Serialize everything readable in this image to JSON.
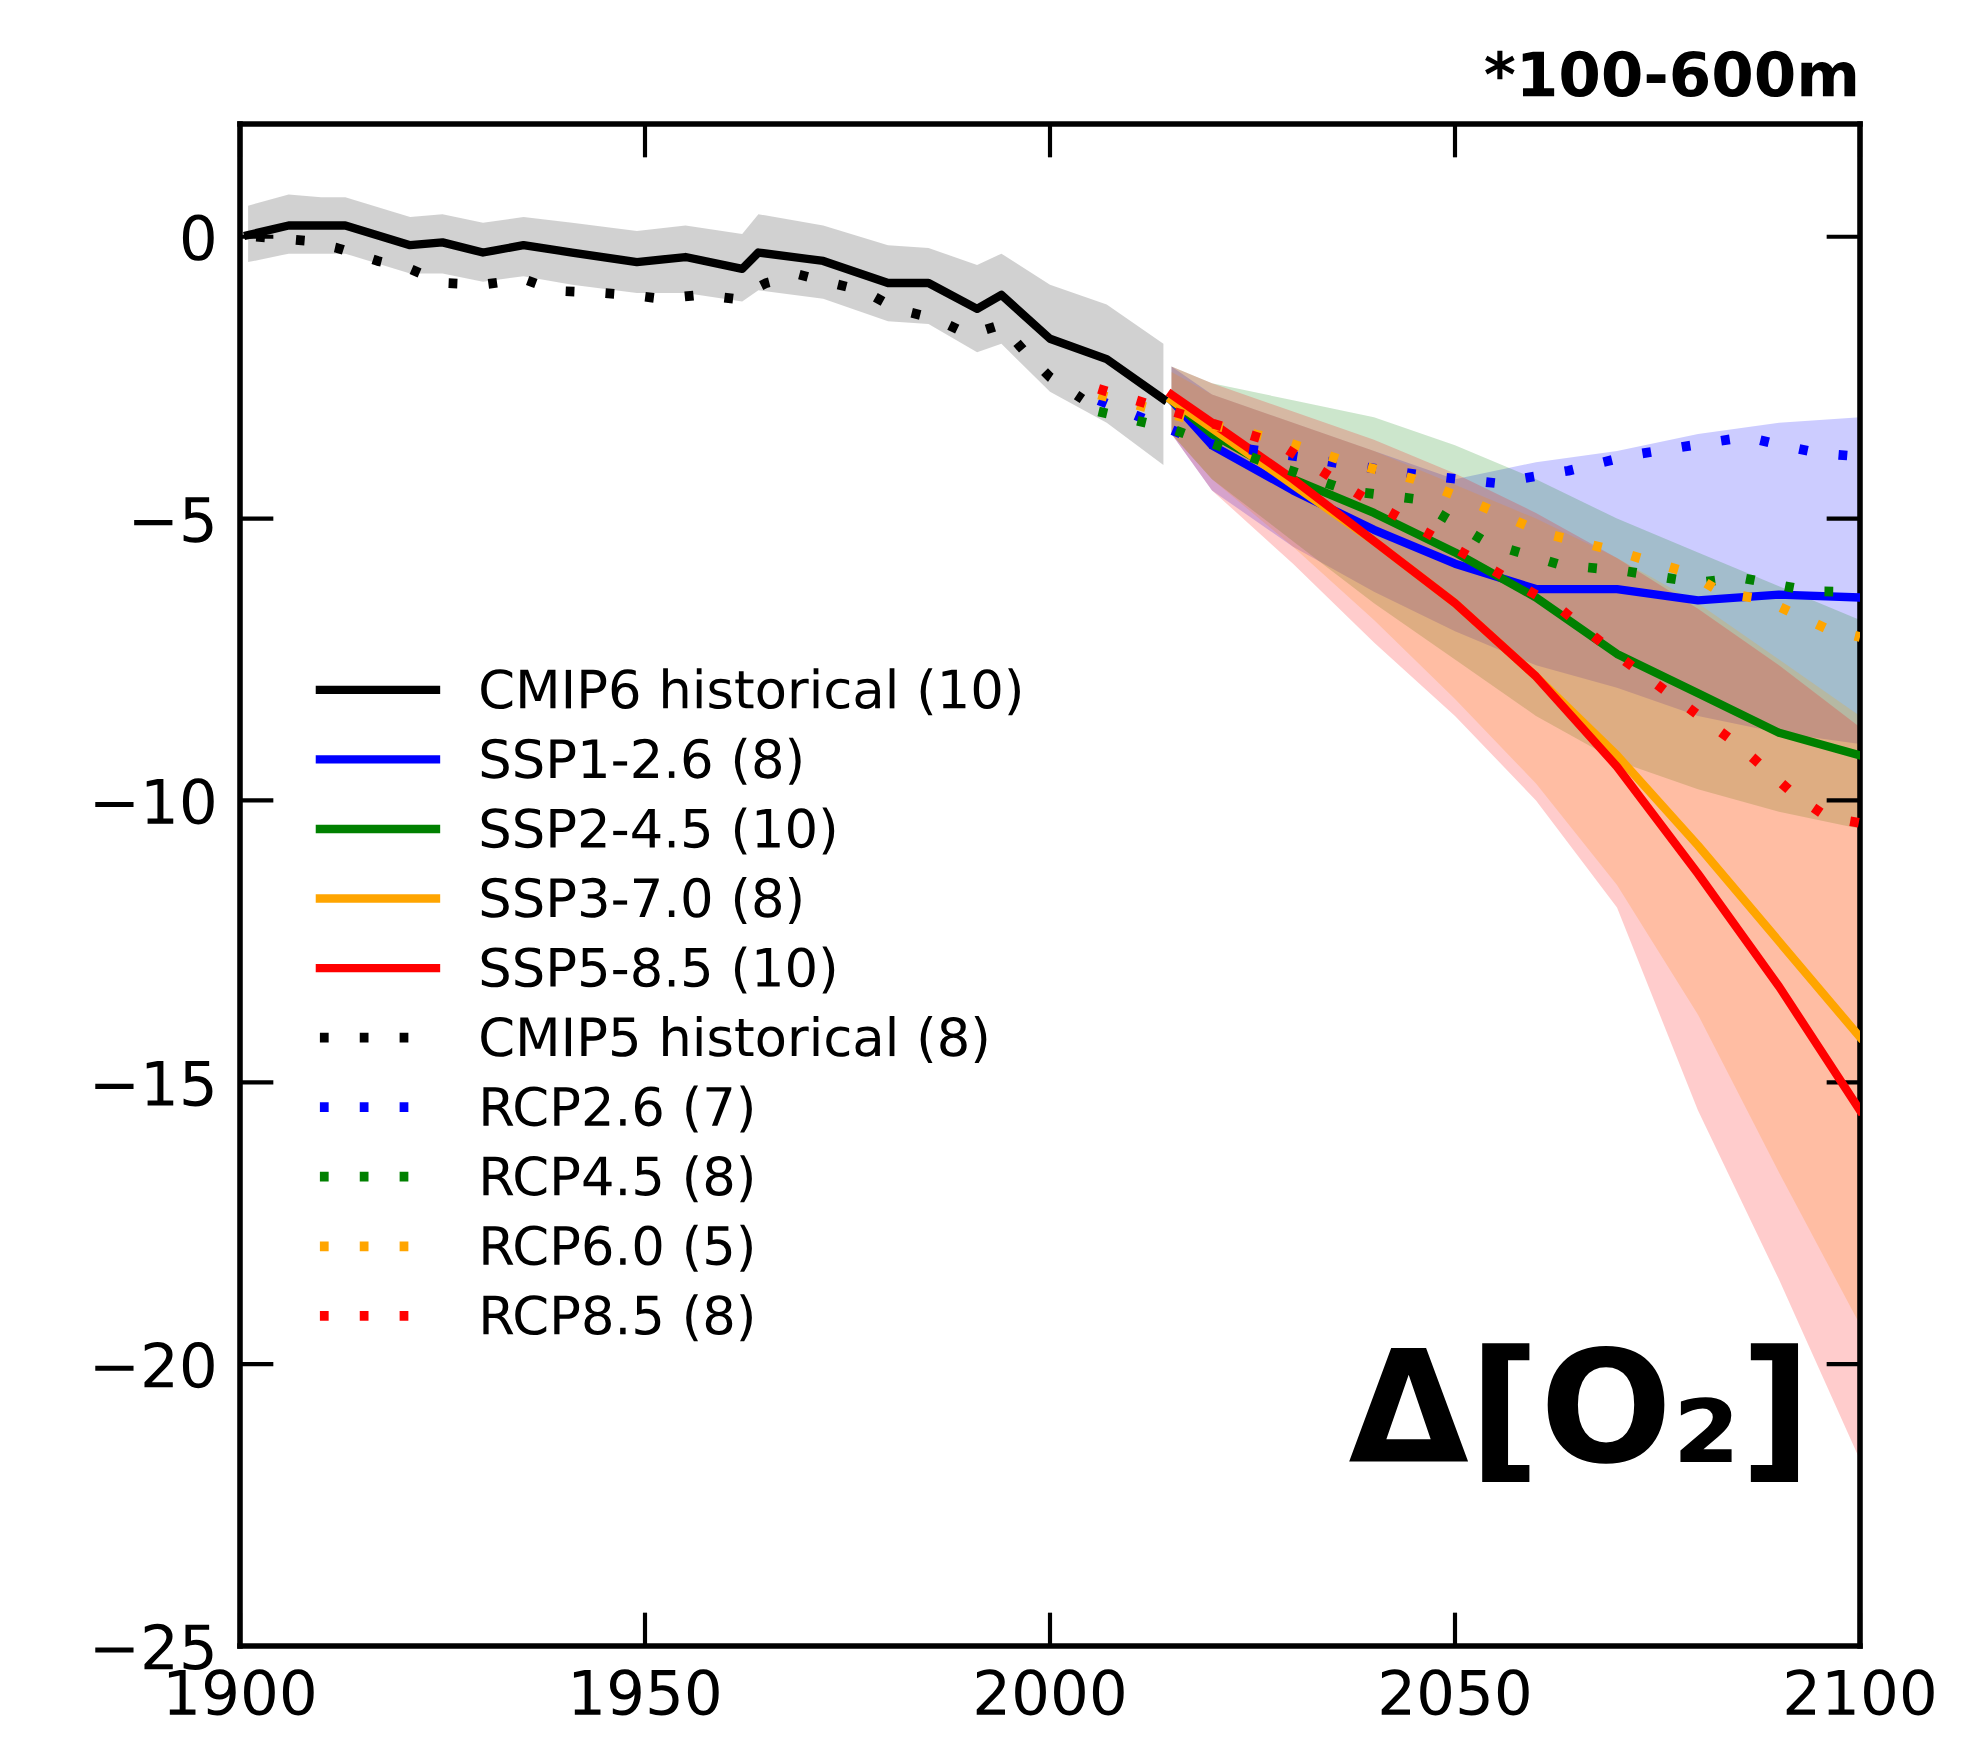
{
  "chart_data": {
    "type": "line",
    "title": "*100-600m",
    "annotations": [
      "Δ[O₂]"
    ],
    "xlim": [
      1900,
      2100
    ],
    "ylim": [
      -25,
      2
    ],
    "xticks": [
      1900,
      1950,
      2000,
      2050,
      2100
    ],
    "yticks": [
      {
        "value": 0,
        "label": "0"
      },
      {
        "value": -5,
        "label": "−5"
      },
      {
        "value": -10,
        "label": "−10"
      },
      {
        "value": -15,
        "label": "−15"
      },
      {
        "value": -20,
        "label": "−20"
      },
      {
        "value": -25,
        "label": "−25"
      }
    ],
    "grid": false,
    "legend": "left",
    "marker": "none",
    "series": [
      {
        "name": "CMIP6 historical (10)",
        "color": "#000000",
        "line_style": "solid",
        "x": [
          1901,
          1906,
          1910,
          1913,
          1921,
          1925,
          1930,
          1935,
          1941,
          1949,
          1955,
          1962,
          1964,
          1972,
          1980,
          1985,
          1991,
          1994,
          2000,
          2007,
          2014
        ],
        "values": [
          0.03,
          0.2,
          0.2,
          0.2,
          -0.15,
          -0.1,
          -0.28,
          -0.15,
          -0.28,
          -0.45,
          -0.36,
          -0.57,
          -0.28,
          -0.43,
          -0.82,
          -0.82,
          -1.28,
          -1.03,
          -1.81,
          -2.17,
          -2.88
        ],
        "upper": [
          0.55,
          0.75,
          0.7,
          0.7,
          0.35,
          0.4,
          0.25,
          0.35,
          0.25,
          0.1,
          0.2,
          0.05,
          0.4,
          0.2,
          -0.15,
          -0.2,
          -0.5,
          -0.3,
          -0.85,
          -1.2,
          -1.9
        ],
        "lower": [
          -0.45,
          -0.3,
          -0.3,
          -0.3,
          -0.65,
          -0.65,
          -0.8,
          -0.7,
          -0.85,
          -1.0,
          -1.0,
          -1.15,
          -0.95,
          -1.1,
          -1.5,
          -1.55,
          -2.05,
          -1.9,
          -2.75,
          -3.3,
          -4.05
        ]
      },
      {
        "name": "SSP1-2.6 (8)",
        "color": "#0000ff",
        "line_style": "solid",
        "x": [
          2015,
          2020,
          2030,
          2040,
          2050,
          2060,
          2070,
          2080,
          2090,
          2100
        ],
        "values": [
          -2.9,
          -3.7,
          -4.5,
          -5.2,
          -5.8,
          -6.25,
          -6.25,
          -6.45,
          -6.35,
          -6.4
        ],
        "upper": [
          -2.3,
          -2.8,
          -3.3,
          -3.8,
          -4.3,
          -4.0,
          -3.8,
          -3.5,
          -3.3,
          -3.2
        ],
        "lower": [
          -3.5,
          -4.5,
          -5.5,
          -6.3,
          -7.0,
          -7.6,
          -8.0,
          -8.5,
          -8.8,
          -9.0
        ]
      },
      {
        "name": "SSP2-4.5 (10)",
        "color": "#008000",
        "line_style": "solid",
        "x": [
          2015,
          2020,
          2030,
          2040,
          2050,
          2060,
          2070,
          2080,
          2090,
          2100
        ],
        "values": [
          -2.9,
          -3.5,
          -4.3,
          -4.9,
          -5.6,
          -6.4,
          -7.4,
          -8.1,
          -8.8,
          -9.2
        ],
        "upper": [
          -2.3,
          -2.6,
          -2.9,
          -3.2,
          -3.7,
          -4.3,
          -5.0,
          -5.6,
          -6.2,
          -6.8
        ],
        "lower": [
          -3.5,
          -4.3,
          -5.4,
          -6.5,
          -7.5,
          -8.5,
          -9.3,
          -9.8,
          -10.2,
          -10.5
        ]
      },
      {
        "name": "SSP3-7.0 (8)",
        "color": "#ffa500",
        "line_style": "solid",
        "x": [
          2015,
          2020,
          2030,
          2040,
          2050,
          2060,
          2070,
          2080,
          2090,
          2100
        ],
        "values": [
          -2.9,
          -3.4,
          -4.4,
          -5.4,
          -6.5,
          -7.8,
          -9.2,
          -10.8,
          -12.5,
          -14.2
        ],
        "upper": [
          -2.4,
          -2.8,
          -3.3,
          -3.8,
          -4.4,
          -5.0,
          -5.7,
          -6.5,
          -7.5,
          -8.5
        ],
        "lower": [
          -3.5,
          -4.3,
          -5.5,
          -6.8,
          -8.2,
          -9.7,
          -11.5,
          -13.8,
          -16.6,
          -19.3
        ]
      },
      {
        "name": "SSP5-8.5 (10)",
        "color": "#ff0000",
        "line_style": "solid",
        "x": [
          2015,
          2020,
          2030,
          2040,
          2050,
          2060,
          2070,
          2080,
          2090,
          2100
        ],
        "values": [
          -2.8,
          -3.3,
          -4.3,
          -5.4,
          -6.5,
          -7.8,
          -9.4,
          -11.3,
          -13.3,
          -15.5
        ],
        "upper": [
          -2.3,
          -2.6,
          -3.1,
          -3.6,
          -4.2,
          -4.9,
          -5.7,
          -6.6,
          -7.6,
          -8.7
        ],
        "lower": [
          -3.5,
          -4.5,
          -5.8,
          -7.2,
          -8.5,
          -10.0,
          -11.9,
          -15.5,
          -18.5,
          -21.7
        ]
      },
      {
        "name": "CMIP5 historical (8)",
        "color": "#000000",
        "line_style": "dotted",
        "x": [
          1902,
          1908,
          1912,
          1917,
          1921,
          1925,
          1930,
          1935,
          1939,
          1944,
          1948,
          1952,
          1957,
          1961,
          1965,
          1969,
          1973,
          1977,
          1981,
          1986,
          1990,
          1994,
          1997,
          2000,
          2004
        ],
        "values": [
          0.0,
          -0.07,
          -0.2,
          -0.43,
          -0.57,
          -0.82,
          -0.85,
          -0.75,
          -0.96,
          -0.99,
          -1.03,
          -1.1,
          -1.03,
          -1.1,
          -0.82,
          -0.67,
          -0.82,
          -0.96,
          -1.28,
          -1.46,
          -1.74,
          -1.56,
          -2.06,
          -2.49,
          -2.88
        ]
      },
      {
        "name": "RCP2.6 (7)",
        "color": "#0000ff",
        "line_style": "dotted",
        "x": [
          2006,
          2019,
          2028,
          2037,
          2046,
          2055,
          2064,
          2072,
          2081,
          2086,
          2090,
          2095,
          2100
        ],
        "values": [
          -2.9,
          -3.66,
          -3.84,
          -4.05,
          -4.23,
          -4.37,
          -4.15,
          -3.87,
          -3.66,
          -3.55,
          -3.69,
          -3.84,
          -3.9
        ]
      },
      {
        "name": "RCP4.5 (8)",
        "color": "#008000",
        "line_style": "dotted",
        "x": [
          2006,
          2015,
          2024,
          2037,
          2045,
          2054,
          2063,
          2071,
          2080,
          2085,
          2094,
          2100
        ],
        "values": [
          -3.1,
          -3.41,
          -3.87,
          -4.51,
          -4.65,
          -5.43,
          -5.82,
          -5.93,
          -6.14,
          -6.04,
          -6.29,
          -6.3
        ]
      },
      {
        "name": "RCP6.0 (5)",
        "color": "#ffa500",
        "line_style": "dotted",
        "x": [
          2006,
          2020,
          2028,
          2037,
          2045,
          2053,
          2061,
          2070,
          2079,
          2083,
          2088,
          2096,
          2100
        ],
        "values": [
          -2.8,
          -3.34,
          -3.59,
          -4.01,
          -4.3,
          -4.76,
          -5.26,
          -5.58,
          -5.97,
          -6.32,
          -6.43,
          -6.96,
          -7.1
        ]
      },
      {
        "name": "RCP8.5 (8)",
        "color": "#ff0000",
        "line_style": "dotted",
        "x": [
          2006,
          2028,
          2039,
          2051,
          2063,
          2070,
          2078,
          2085,
          2092,
          2096,
          2100
        ],
        "values": [
          -2.7,
          -3.66,
          -4.65,
          -5.61,
          -6.6,
          -7.42,
          -8.27,
          -9.02,
          -9.91,
          -10.3,
          -10.4
        ]
      }
    ]
  }
}
